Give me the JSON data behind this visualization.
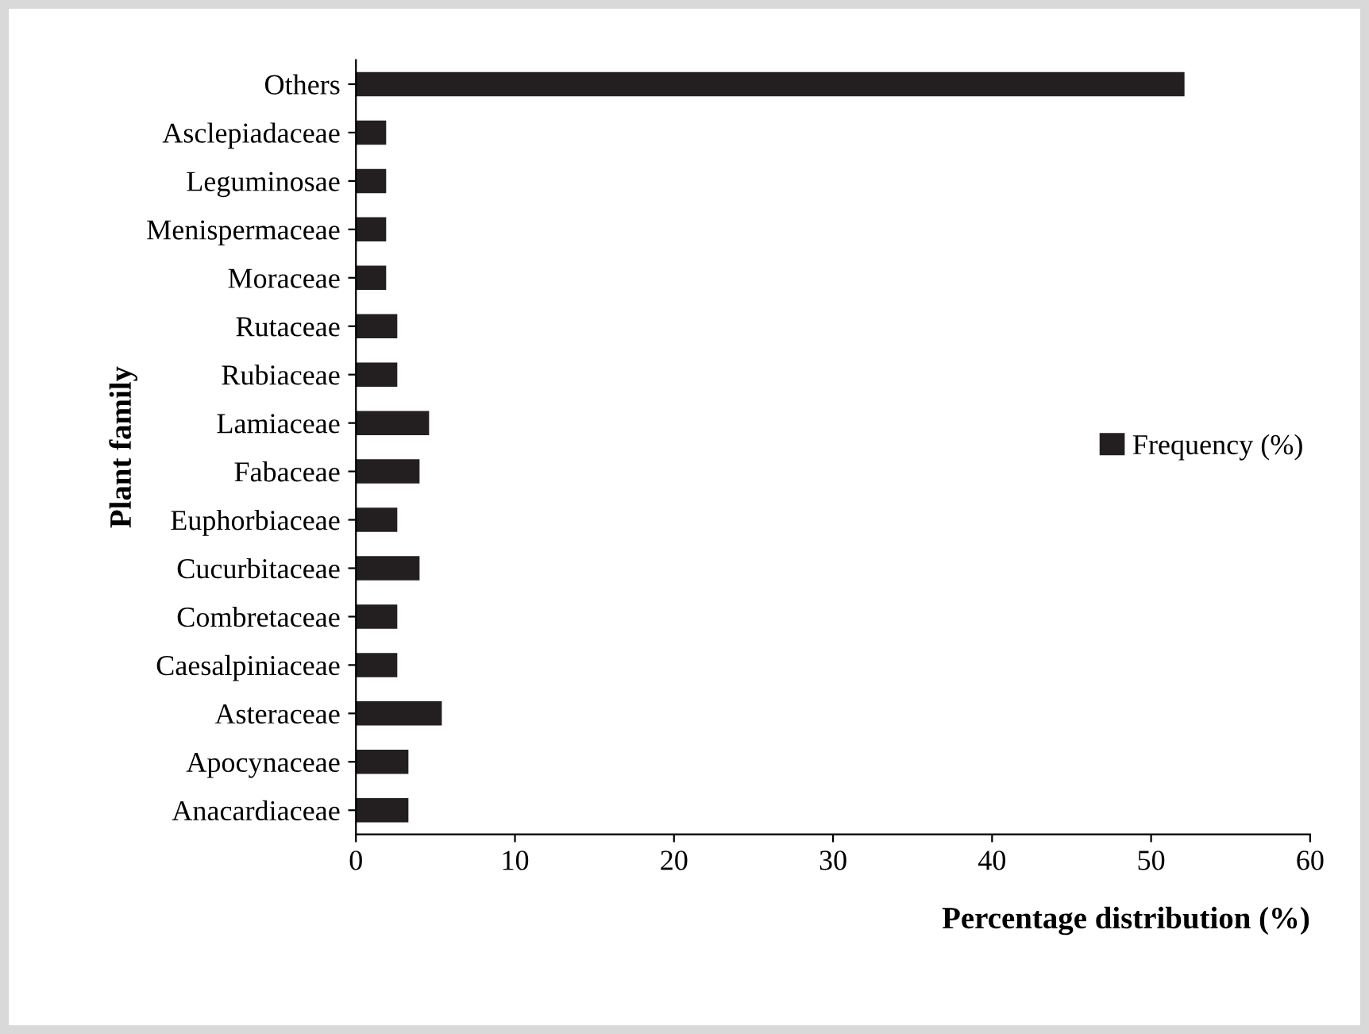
{
  "chart_data": {
    "type": "bar",
    "orientation": "horizontal",
    "xlabel": "Percentage distribution (%)",
    "ylabel": "Plant family",
    "categories": [
      "Others",
      "Asclepiadaceae",
      "Leguminosae",
      "Menispermaceae",
      "Moraceae",
      "Rutaceae",
      "Rubiaceae",
      "Lamiaceae",
      "Fabaceae",
      "Euphorbiaceae",
      "Cucurbitaceae",
      "Combretaceae",
      "Caesalpiniaceae",
      "Asteraceae",
      "Apocynaceae",
      "Anacardiaceae"
    ],
    "series": [
      {
        "name": "Frequency (%)",
        "color": "#231f20",
        "values": [
          52.1,
          1.9,
          1.9,
          1.9,
          1.9,
          2.6,
          2.6,
          4.6,
          4.0,
          2.6,
          4.0,
          2.6,
          2.6,
          5.4,
          3.3,
          3.3
        ]
      }
    ],
    "xlim": [
      0,
      60
    ],
    "xticks": [
      0,
      10,
      20,
      30,
      40,
      50,
      60
    ],
    "grid": false,
    "legend": "right"
  }
}
